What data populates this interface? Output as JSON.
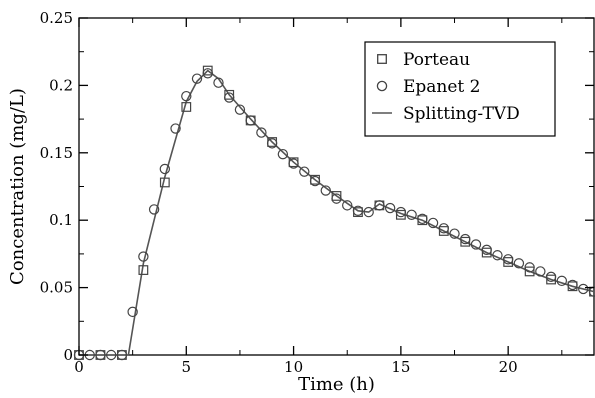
{
  "chart_data": {
    "type": "line",
    "title": "",
    "xlabel": "Time (h)",
    "ylabel": "Concentration (mg/L)",
    "xlim": [
      0,
      24
    ],
    "ylim": [
      0,
      0.25
    ],
    "xticks": [
      0,
      5,
      10,
      15,
      20
    ],
    "xtick_labels": [
      "0",
      "5",
      "10",
      "15",
      "20"
    ],
    "yticks": [
      0,
      0.05,
      0.1,
      0.15,
      0.2,
      0.25
    ],
    "ytick_labels": [
      "0",
      "0.05",
      "0.1",
      "0.15",
      "0.2",
      "0.25"
    ],
    "grid": false,
    "legend_position": "top-right",
    "series": [
      {
        "name": "Porteau",
        "marker": "square",
        "x": [
          0,
          1,
          2,
          3,
          4,
          5,
          6,
          7,
          8,
          9,
          10,
          11,
          12,
          13,
          14,
          15,
          16,
          17,
          18,
          19,
          20,
          21,
          22,
          23,
          24
        ],
        "y": [
          0,
          0,
          0,
          0.063,
          0.128,
          0.184,
          0.211,
          0.193,
          0.174,
          0.158,
          0.143,
          0.13,
          0.118,
          0.106,
          0.111,
          0.104,
          0.1,
          0.092,
          0.084,
          0.076,
          0.069,
          0.062,
          0.056,
          0.051,
          0.047
        ]
      },
      {
        "name": "Epanet 2",
        "marker": "circle",
        "x": [
          0,
          0.5,
          1,
          1.5,
          2,
          2.5,
          3,
          3.5,
          4,
          4.5,
          5,
          5.5,
          6,
          6.5,
          7,
          7.5,
          8,
          8.5,
          9,
          9.5,
          10,
          10.5,
          11,
          11.5,
          12,
          12.5,
          13,
          13.5,
          14,
          14.5,
          15,
          15.5,
          16,
          16.5,
          17,
          17.5,
          18,
          18.5,
          19,
          19.5,
          20,
          20.5,
          21,
          21.5,
          22,
          22.5,
          23,
          23.5,
          24
        ],
        "y": [
          0,
          0,
          0,
          0,
          0,
          0.032,
          0.073,
          0.108,
          0.138,
          0.168,
          0.192,
          0.205,
          0.209,
          0.202,
          0.191,
          0.182,
          0.174,
          0.165,
          0.157,
          0.149,
          0.142,
          0.136,
          0.129,
          0.122,
          0.116,
          0.111,
          0.107,
          0.106,
          0.111,
          0.109,
          0.106,
          0.104,
          0.101,
          0.098,
          0.094,
          0.09,
          0.086,
          0.082,
          0.078,
          0.074,
          0.071,
          0.068,
          0.065,
          0.062,
          0.058,
          0.055,
          0.052,
          0.049,
          0.047
        ]
      },
      {
        "name": "Splitting-TVD",
        "marker": "line",
        "x": [
          0,
          2.3,
          3,
          4,
          5,
          5.5,
          6,
          6.5,
          7,
          8,
          9,
          10,
          11,
          12,
          13,
          13.5,
          14,
          15,
          16,
          17,
          18,
          19,
          20,
          21,
          22,
          23,
          24
        ],
        "y": [
          0,
          0,
          0.068,
          0.132,
          0.188,
          0.203,
          0.211,
          0.205,
          0.193,
          0.175,
          0.158,
          0.143,
          0.13,
          0.118,
          0.107,
          0.106,
          0.112,
          0.105,
          0.1,
          0.092,
          0.084,
          0.076,
          0.069,
          0.062,
          0.056,
          0.051,
          0.047
        ]
      }
    ],
    "colors": {
      "axis": "#000000",
      "line": "#555555",
      "marker_stroke": "#444444"
    }
  }
}
